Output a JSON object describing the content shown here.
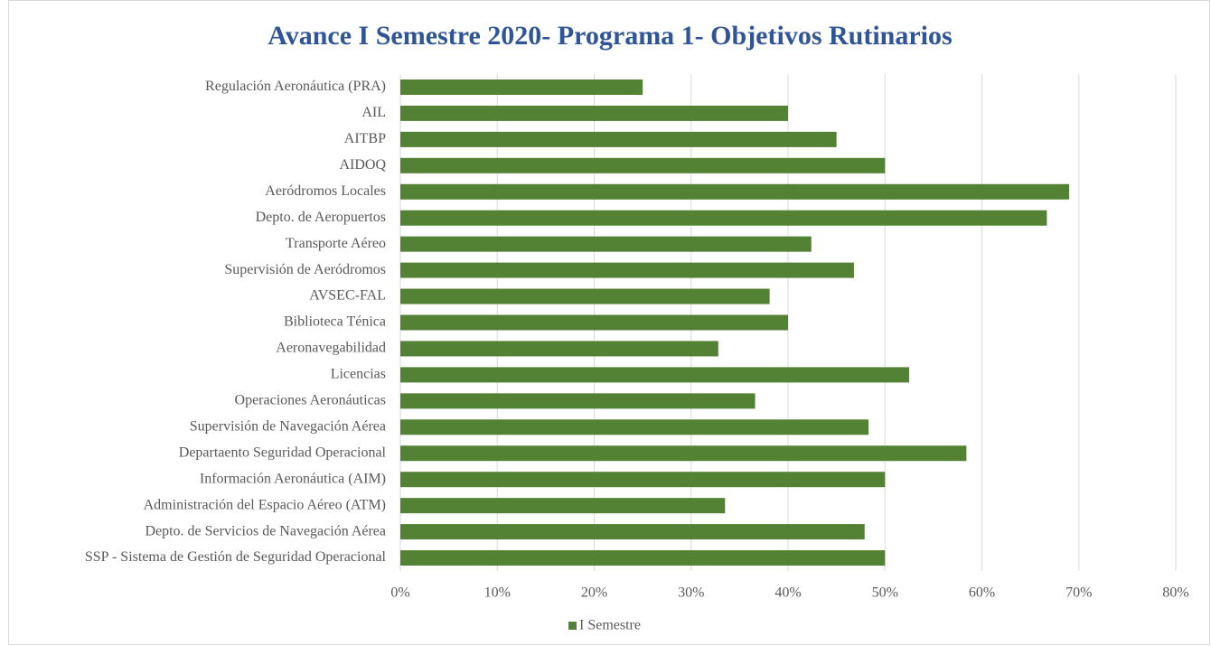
{
  "chart_data": {
    "type": "bar",
    "orientation": "horizontal",
    "title": "Avance I Semestre 2020- Programa 1- Objetivos Rutinarios",
    "categories": [
      "Regulación Aeronáutica (PRA)",
      "AIL",
      "AITBP",
      "AIDOQ",
      "Aeródromos Locales",
      "Depto. de Aeropuertos",
      "Transporte Aéreo",
      "Supervisión de Aeródromos",
      "AVSEC-FAL",
      "Biblioteca Ténica",
      "Aeronavegabilidad",
      "Licencias",
      "Operaciones Aeronáuticas",
      "Supervisión de Navegación Aérea",
      "Departaento Seguridad Operacional",
      "Información Aeronáutica (AIM)",
      "Administración del Espacio Aéreo (ATM)",
      "Depto. de Servicios de Navegación Aérea",
      "SSP - Sistema de Gestión de Seguridad Operacional"
    ],
    "series": [
      {
        "name": "I Semestre",
        "color": "#548235",
        "values": [
          25,
          40,
          45,
          50,
          69,
          66.7,
          42.4,
          46.8,
          38.1,
          40,
          32.8,
          52.5,
          36.6,
          48.3,
          58.4,
          50,
          33.5,
          47.9,
          50
        ]
      }
    ],
    "xlim": [
      0,
      80
    ],
    "xticks": [
      {
        "value": 0,
        "label": "0%"
      },
      {
        "value": 10,
        "label": "10%"
      },
      {
        "value": 20,
        "label": "20%"
      },
      {
        "value": 30,
        "label": "30%"
      },
      {
        "value": 40,
        "label": "40%"
      },
      {
        "value": 50,
        "label": "50%"
      },
      {
        "value": 60,
        "label": "60%"
      },
      {
        "value": 70,
        "label": "70%"
      },
      {
        "value": 80,
        "label": "80%"
      }
    ],
    "grid": true,
    "legend": "bottom"
  }
}
